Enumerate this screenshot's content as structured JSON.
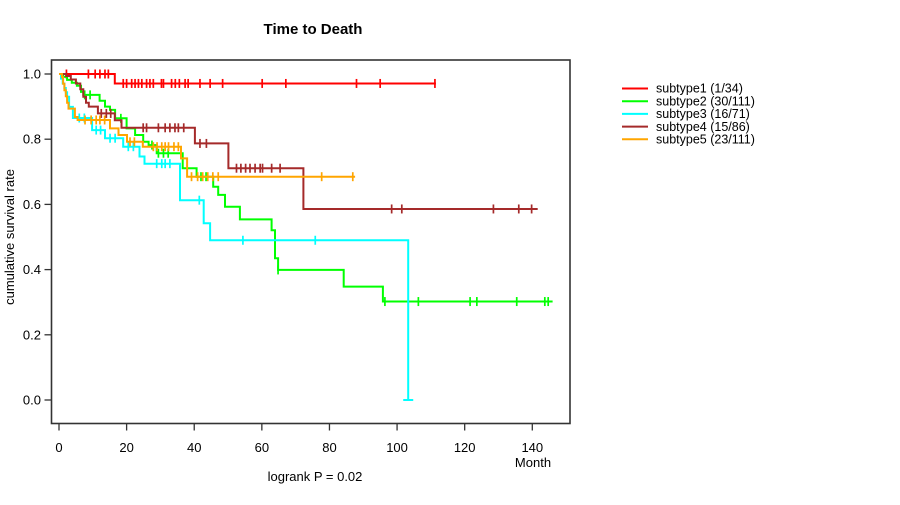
{
  "chart_data": {
    "type": "line",
    "chart_kind": "kaplan-meier-step",
    "title": "Time to Death",
    "xlabel": "Month",
    "ylabel": "cumulative survival rate",
    "annotation": "logrank P = 0.02",
    "xlim": [
      0,
      151
    ],
    "ylim": [
      0.0,
      1.0
    ],
    "x_ticks": [
      0,
      20,
      40,
      60,
      80,
      100,
      120,
      140
    ],
    "y_ticks": [
      "0.0",
      "0.2",
      "0.4",
      "0.6",
      "0.8",
      "1.0"
    ],
    "grid": false,
    "legend_position": "right-outside",
    "frame_color": "#333333",
    "text_color": "#000000",
    "series": [
      {
        "name": "subtype1 (1/34)",
        "id": "subtype1",
        "color": "#ff0000",
        "steps": [
          [
            0,
            1.0
          ],
          [
            16.5,
            0.971
          ]
        ],
        "end_month": 111.5,
        "censor_ticks": [
          [
            2.2,
            1.0
          ],
          [
            8.7,
            1.0
          ],
          [
            10.7,
            1.0
          ],
          [
            12.1,
            1.0
          ],
          [
            13.6,
            1.0
          ],
          [
            14.6,
            1.0
          ],
          [
            19,
            0.971
          ],
          [
            20,
            0.971
          ],
          [
            21.5,
            0.971
          ],
          [
            22.5,
            0.971
          ],
          [
            23.5,
            0.971
          ],
          [
            24.5,
            0.971
          ],
          [
            25.9,
            0.971
          ],
          [
            26.9,
            0.971
          ],
          [
            27.9,
            0.971
          ],
          [
            30.3,
            0.971
          ],
          [
            30.9,
            0.971
          ],
          [
            33.3,
            0.971
          ],
          [
            34.4,
            0.971
          ],
          [
            35.6,
            0.971
          ],
          [
            37.3,
            0.971
          ],
          [
            38.2,
            0.971
          ],
          [
            41.7,
            0.971
          ],
          [
            44.7,
            0.971
          ],
          [
            48.4,
            0.971
          ],
          [
            60.1,
            0.971
          ],
          [
            67.1,
            0.971
          ],
          [
            88,
            0.971
          ],
          [
            95,
            0.971
          ],
          [
            111.2,
            0.971
          ]
        ]
      },
      {
        "name": "subtype2 (30/111)",
        "id": "subtype2",
        "color": "#00ff00",
        "steps": [
          [
            0,
            1.0
          ],
          [
            1.2,
            0.991
          ],
          [
            2.4,
            0.982
          ],
          [
            3.8,
            0.973
          ],
          [
            5.3,
            0.964
          ],
          [
            6.5,
            0.945
          ],
          [
            7.2,
            0.936
          ],
          [
            12,
            0.918
          ],
          [
            13.6,
            0.9
          ],
          [
            15.1,
            0.89
          ],
          [
            16.6,
            0.864
          ],
          [
            20,
            0.833
          ],
          [
            22.5,
            0.813
          ],
          [
            24.9,
            0.792
          ],
          [
            26.5,
            0.782
          ],
          [
            28.9,
            0.757
          ],
          [
            36.6,
            0.711
          ],
          [
            40.7,
            0.685
          ],
          [
            45.6,
            0.654
          ],
          [
            47.1,
            0.629
          ],
          [
            49.1,
            0.593
          ],
          [
            53.5,
            0.554
          ],
          [
            62.9,
            0.521
          ],
          [
            63.9,
            0.435
          ],
          [
            64.8,
            0.399
          ],
          [
            84.2,
            0.348
          ],
          [
            95.8,
            0.302
          ]
        ],
        "end_month": 146,
        "censor_ticks": [
          [
            7.6,
            0.936
          ],
          [
            9.2,
            0.936
          ],
          [
            18.3,
            0.864
          ],
          [
            27.5,
            0.782
          ],
          [
            29.4,
            0.757
          ],
          [
            30.9,
            0.757
          ],
          [
            32.3,
            0.757
          ],
          [
            42,
            0.685
          ],
          [
            43.5,
            0.685
          ],
          [
            64.8,
            0.399
          ],
          [
            96.4,
            0.302
          ],
          [
            106.3,
            0.302
          ],
          [
            121.6,
            0.302
          ],
          [
            123.6,
            0.302
          ],
          [
            135.4,
            0.302
          ],
          [
            143.7,
            0.302
          ],
          [
            144.7,
            0.302
          ]
        ]
      },
      {
        "name": "subtype3 (16/71)",
        "id": "subtype3",
        "color": "#00ffff",
        "steps": [
          [
            0,
            1.0
          ],
          [
            0.6,
            0.986
          ],
          [
            1.1,
            0.971
          ],
          [
            1.6,
            0.957
          ],
          [
            2,
            0.944
          ],
          [
            2.4,
            0.93
          ],
          [
            3,
            0.899
          ],
          [
            4.1,
            0.865
          ],
          [
            9.8,
            0.828
          ],
          [
            13.6,
            0.803
          ],
          [
            19,
            0.777
          ],
          [
            23.8,
            0.747
          ],
          [
            25.3,
            0.725
          ],
          [
            35.8,
            0.613
          ],
          [
            42.8,
            0.542
          ],
          [
            44.7,
            0.49
          ],
          [
            103.3,
            0.0
          ]
        ],
        "end_month": 103.3,
        "censor_ticks": [
          [
            6,
            0.865
          ],
          [
            7.5,
            0.865
          ],
          [
            11,
            0.828
          ],
          [
            12.3,
            0.828
          ],
          [
            15.1,
            0.803
          ],
          [
            16.6,
            0.803
          ],
          [
            20.5,
            0.777
          ],
          [
            22,
            0.777
          ],
          [
            28.9,
            0.725
          ],
          [
            30.4,
            0.725
          ],
          [
            31.4,
            0.725
          ],
          [
            32.8,
            0.725
          ],
          [
            41.5,
            0.613
          ],
          [
            54.4,
            0.49
          ],
          [
            75.8,
            0.49
          ],
          [
            103.3,
            0.0,
            "h"
          ]
        ]
      },
      {
        "name": "subtype4 (15/86)",
        "id": "subtype4",
        "color": "#a52a2a",
        "steps": [
          [
            0,
            1.0
          ],
          [
            2.1,
            0.994
          ],
          [
            3.5,
            0.983
          ],
          [
            5,
            0.971
          ],
          [
            6.3,
            0.953
          ],
          [
            7.2,
            0.93
          ],
          [
            8,
            0.912
          ],
          [
            8.8,
            0.9
          ],
          [
            11.5,
            0.879
          ],
          [
            16.5,
            0.858
          ],
          [
            18.5,
            0.835
          ],
          [
            40.2,
            0.787
          ],
          [
            50.1,
            0.711
          ],
          [
            72.3,
            0.586
          ]
        ],
        "end_month": 141.6,
        "censor_ticks": [
          [
            12.5,
            0.879
          ],
          [
            14,
            0.879
          ],
          [
            15.3,
            0.879
          ],
          [
            24.9,
            0.835
          ],
          [
            25.9,
            0.835
          ],
          [
            29.4,
            0.835
          ],
          [
            31.4,
            0.835
          ],
          [
            32.8,
            0.835
          ],
          [
            34.3,
            0.835
          ],
          [
            35.3,
            0.835
          ],
          [
            36.9,
            0.835
          ],
          [
            41.7,
            0.787
          ],
          [
            43.6,
            0.787
          ],
          [
            52.5,
            0.711
          ],
          [
            53.8,
            0.711
          ],
          [
            55.2,
            0.711
          ],
          [
            56.5,
            0.711
          ],
          [
            58,
            0.711
          ],
          [
            59.5,
            0.711
          ],
          [
            60.2,
            0.711
          ],
          [
            62.9,
            0.711
          ],
          [
            65.4,
            0.711
          ],
          [
            98.4,
            0.586
          ],
          [
            101.4,
            0.586
          ],
          [
            128.5,
            0.586
          ],
          [
            136,
            0.586
          ],
          [
            139.8,
            0.586
          ]
        ]
      },
      {
        "name": "subtype5 (23/111)",
        "id": "subtype5",
        "color": "#ffa500",
        "steps": [
          [
            0,
            1.0
          ],
          [
            0.9,
            0.99
          ],
          [
            1.2,
            0.97
          ],
          [
            1.6,
            0.95
          ],
          [
            2,
            0.932
          ],
          [
            2.4,
            0.912
          ],
          [
            2.8,
            0.894
          ],
          [
            4.7,
            0.868
          ],
          [
            5.5,
            0.859
          ],
          [
            15.1,
            0.833
          ],
          [
            17.6,
            0.813
          ],
          [
            20.1,
            0.792
          ],
          [
            24.8,
            0.777
          ],
          [
            36.1,
            0.741
          ],
          [
            37.9,
            0.685
          ]
        ],
        "end_month": 87.6,
        "censor_ticks": [
          [
            7.7,
            0.859
          ],
          [
            9.5,
            0.859
          ],
          [
            11,
            0.859
          ],
          [
            12.1,
            0.859
          ],
          [
            13.5,
            0.859
          ],
          [
            21,
            0.792
          ],
          [
            22.3,
            0.792
          ],
          [
            27.9,
            0.777
          ],
          [
            29,
            0.777
          ],
          [
            30.4,
            0.777
          ],
          [
            31.4,
            0.777
          ],
          [
            32.4,
            0.777
          ],
          [
            34,
            0.777
          ],
          [
            35.3,
            0.777
          ],
          [
            39.2,
            0.685
          ],
          [
            41,
            0.685
          ],
          [
            42.5,
            0.685
          ],
          [
            44,
            0.685
          ],
          [
            45.5,
            0.685
          ],
          [
            47.1,
            0.685
          ],
          [
            77.7,
            0.685
          ],
          [
            86.9,
            0.685
          ]
        ]
      }
    ]
  }
}
